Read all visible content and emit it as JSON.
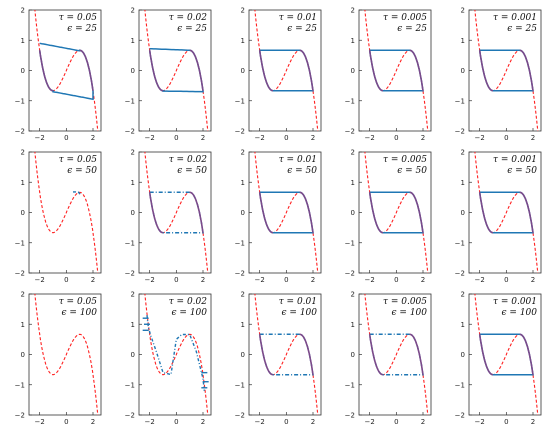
{
  "figure": {
    "rows": 3,
    "cols": 5,
    "colors": {
      "curve": "#ff2020",
      "series": "#1f77b4",
      "overlap": "#7b4a8a"
    }
  },
  "chart_data": [
    {
      "type": "line",
      "tau": "0.05",
      "epsilon": "25",
      "row": 0,
      "col": 0,
      "x": [
        -2,
        0,
        2
      ],
      "ylim": [
        -2,
        2
      ],
      "xlim": [
        -2.8,
        2.6
      ],
      "regime": "converged",
      "series": [
        {
          "values": "cubic_nullcline",
          "style": "dashed"
        },
        {
          "values": "limit_cycle",
          "style": "solid"
        }
      ],
      "annotation": [
        "τ = 0.05",
        "ϵ = 25"
      ]
    },
    {
      "type": "line",
      "tau": "0.02",
      "epsilon": "25",
      "row": 0,
      "col": 1,
      "x": [
        -2,
        0,
        2
      ],
      "ylim": [
        -2,
        2
      ],
      "xlim": [
        -2.8,
        2.6
      ],
      "regime": "converged",
      "series": [
        {
          "values": "cubic_nullcline",
          "style": "dashed"
        },
        {
          "values": "limit_cycle",
          "style": "solid"
        }
      ],
      "annotation": [
        "τ = 0.02",
        "ϵ = 25"
      ]
    },
    {
      "type": "line",
      "tau": "0.01",
      "epsilon": "25",
      "row": 0,
      "col": 2,
      "x": [
        -2,
        0,
        2
      ],
      "ylim": [
        -2,
        2
      ],
      "xlim": [
        -2.8,
        2.6
      ],
      "regime": "converged",
      "series": [
        {
          "values": "cubic_nullcline",
          "style": "dashed"
        },
        {
          "values": "limit_cycle",
          "style": "solid"
        }
      ],
      "annotation": [
        "τ = 0.01",
        "ϵ = 25"
      ]
    },
    {
      "type": "line",
      "tau": "0.005",
      "epsilon": "25",
      "row": 0,
      "col": 3,
      "x": [
        -2,
        0,
        2
      ],
      "ylim": [
        -2,
        2
      ],
      "xlim": [
        -2.8,
        2.6
      ],
      "regime": "converged",
      "series": [
        {
          "values": "cubic_nullcline",
          "style": "dashed"
        },
        {
          "values": "limit_cycle",
          "style": "solid"
        }
      ],
      "annotation": [
        "τ = 0.005",
        "ϵ = 25"
      ]
    },
    {
      "type": "line",
      "tau": "0.001",
      "epsilon": "25",
      "row": 0,
      "col": 4,
      "x": [
        -2,
        0,
        2
      ],
      "ylim": [
        -2,
        2
      ],
      "xlim": [
        -2.8,
        2.6
      ],
      "regime": "converged",
      "series": [
        {
          "values": "cubic_nullcline",
          "style": "dashed"
        },
        {
          "values": "limit_cycle",
          "style": "solid"
        }
      ],
      "annotation": [
        "τ = 0.001",
        "ϵ = 25"
      ]
    },
    {
      "type": "line",
      "tau": "0.05",
      "epsilon": "50",
      "row": 1,
      "col": 0,
      "x": [
        -2,
        0,
        2
      ],
      "ylim": [
        -2,
        2
      ],
      "xlim": [
        -2.8,
        2.6
      ],
      "regime": "stuck",
      "series": [
        {
          "values": "cubic_nullcline",
          "style": "dashed"
        },
        {
          "values": "fragment",
          "style": "solid"
        }
      ],
      "annotation": [
        "τ = 0.05",
        "ϵ = 50"
      ]
    },
    {
      "type": "line",
      "tau": "0.02",
      "epsilon": "50",
      "row": 1,
      "col": 1,
      "x": [
        -2,
        0,
        2
      ],
      "ylim": [
        -2,
        2
      ],
      "xlim": [
        -2.8,
        2.6
      ],
      "regime": "unstable",
      "series": [
        {
          "values": "cubic_nullcline",
          "style": "dashed"
        },
        {
          "values": "limit_cycle",
          "style": "dashdot"
        }
      ],
      "annotation": [
        "τ = 0.02",
        "ϵ = 50"
      ]
    },
    {
      "type": "line",
      "tau": "0.01",
      "epsilon": "50",
      "row": 1,
      "col": 2,
      "x": [
        -2,
        0,
        2
      ],
      "ylim": [
        -2,
        2
      ],
      "xlim": [
        -2.8,
        2.6
      ],
      "regime": "converged",
      "series": [
        {
          "values": "cubic_nullcline",
          "style": "dashed"
        },
        {
          "values": "limit_cycle",
          "style": "solid"
        }
      ],
      "annotation": [
        "τ = 0.01",
        "ϵ = 50"
      ]
    },
    {
      "type": "line",
      "tau": "0.005",
      "epsilon": "50",
      "row": 1,
      "col": 3,
      "x": [
        -2,
        0,
        2
      ],
      "ylim": [
        -2,
        2
      ],
      "xlim": [
        -2.8,
        2.6
      ],
      "regime": "converged",
      "series": [
        {
          "values": "cubic_nullcline",
          "style": "dashed"
        },
        {
          "values": "limit_cycle",
          "style": "solid"
        }
      ],
      "annotation": [
        "τ = 0.005",
        "ϵ = 50"
      ]
    },
    {
      "type": "line",
      "tau": "0.001",
      "epsilon": "50",
      "row": 1,
      "col": 4,
      "x": [
        -2,
        0,
        2
      ],
      "ylim": [
        -2,
        2
      ],
      "xlim": [
        -2.8,
        2.6
      ],
      "regime": "converged",
      "series": [
        {
          "values": "cubic_nullcline",
          "style": "dashed"
        },
        {
          "values": "limit_cycle",
          "style": "solid"
        }
      ],
      "annotation": [
        "τ = 0.001",
        "ϵ = 50"
      ]
    },
    {
      "type": "line",
      "tau": "0.05",
      "epsilon": "100",
      "row": 2,
      "col": 0,
      "x": [
        -2,
        0,
        2
      ],
      "ylim": [
        -2,
        2
      ],
      "xlim": [
        -2.8,
        2.6
      ],
      "regime": "empty",
      "series": [
        {
          "values": "cubic_nullcline",
          "style": "dashed"
        }
      ],
      "annotation": [
        "τ = 0.05",
        "ϵ = 100"
      ]
    },
    {
      "type": "line",
      "tau": "0.02",
      "epsilon": "100",
      "row": 2,
      "col": 1,
      "x": [
        -2,
        0,
        2
      ],
      "ylim": [
        -2,
        2
      ],
      "xlim": [
        -2.8,
        2.6
      ],
      "regime": "chaotic",
      "series": [
        {
          "values": "cubic_nullcline",
          "style": "dashed"
        },
        {
          "values": "limit_cycle",
          "style": "dashdot"
        }
      ],
      "annotation": [
        "τ = 0.02",
        "ϵ = 100"
      ]
    },
    {
      "type": "line",
      "tau": "0.01",
      "epsilon": "100",
      "row": 2,
      "col": 2,
      "x": [
        -2,
        0,
        2
      ],
      "ylim": [
        -2,
        2
      ],
      "xlim": [
        -2.8,
        2.6
      ],
      "regime": "unstable",
      "series": [
        {
          "values": "cubic_nullcline",
          "style": "dashed"
        },
        {
          "values": "limit_cycle",
          "style": "dashdot"
        }
      ],
      "annotation": [
        "τ = 0.01",
        "ϵ = 100"
      ]
    },
    {
      "type": "line",
      "tau": "0.005",
      "epsilon": "100",
      "row": 2,
      "col": 3,
      "x": [
        -2,
        0,
        2
      ],
      "ylim": [
        -2,
        2
      ],
      "xlim": [
        -2.8,
        2.6
      ],
      "regime": "unstable",
      "series": [
        {
          "values": "cubic_nullcline",
          "style": "dashed"
        },
        {
          "values": "limit_cycle",
          "style": "dashdot"
        }
      ],
      "annotation": [
        "τ = 0.005",
        "ϵ = 100"
      ]
    },
    {
      "type": "line",
      "tau": "0.001",
      "epsilon": "100",
      "row": 2,
      "col": 4,
      "x": [
        -2,
        0,
        2
      ],
      "ylim": [
        -2,
        2
      ],
      "xlim": [
        -2.8,
        2.6
      ],
      "regime": "nearly",
      "series": [
        {
          "values": "cubic_nullcline",
          "style": "dashed"
        },
        {
          "values": "limit_cycle",
          "style": "dashdot"
        }
      ],
      "annotation": [
        "τ = 0.001",
        "ϵ = 100"
      ]
    }
  ]
}
